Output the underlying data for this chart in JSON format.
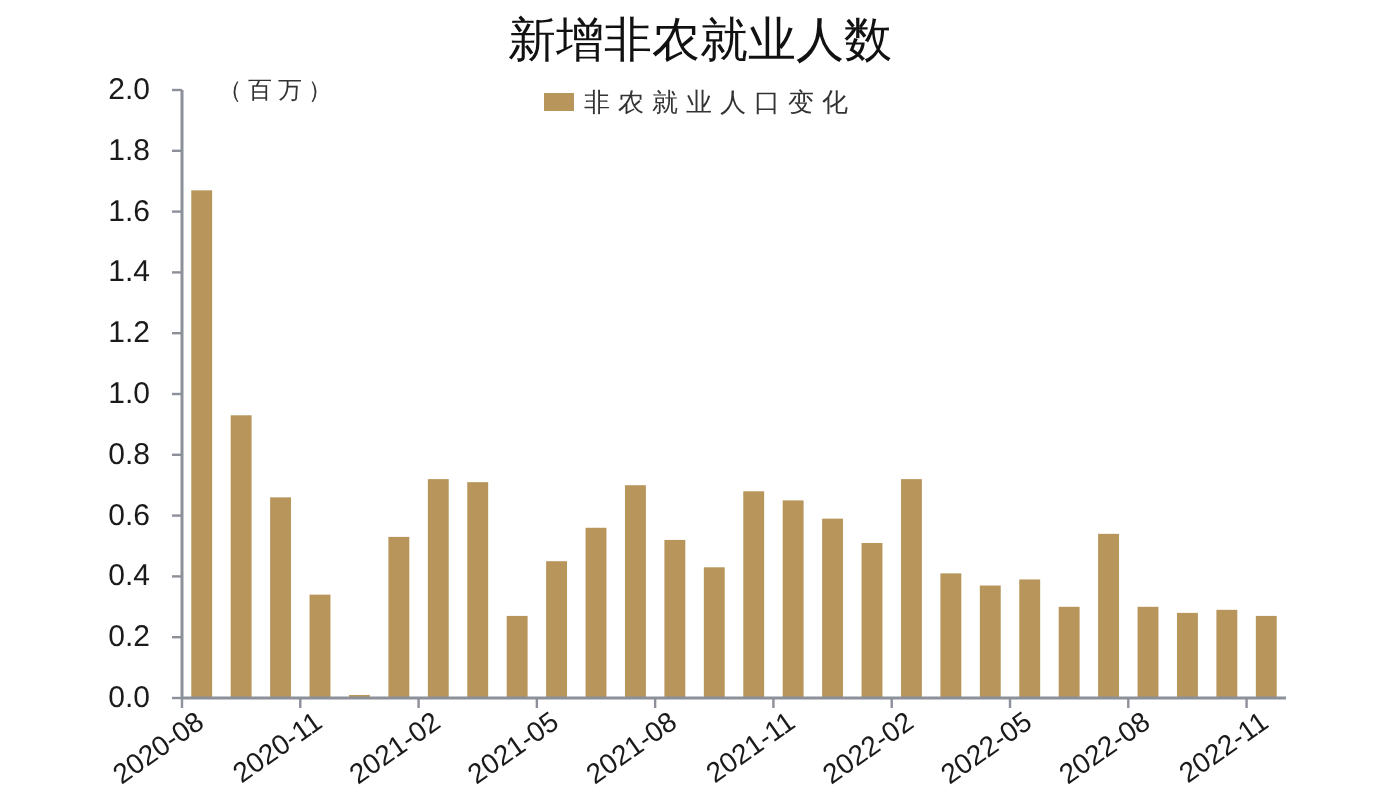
{
  "chart_data": {
    "type": "bar",
    "title": "新增非农就业人数",
    "ylabel": "（百万）",
    "categories": [
      "2020-08",
      null,
      null,
      "2020-11",
      null,
      null,
      "2021-02",
      null,
      null,
      "2021-05",
      null,
      null,
      "2021-08",
      null,
      null,
      "2021-11",
      null,
      null,
      "2022-02",
      null,
      null,
      "2022-05",
      null,
      null,
      "2022-08",
      null,
      null,
      "2022-11"
    ],
    "series": [
      {
        "name": "非农就业人口变化",
        "color": "#b8955a",
        "values": [
          1.67,
          0.93,
          0.66,
          0.34,
          0.01,
          0.53,
          0.72,
          0.71,
          0.27,
          0.45,
          0.56,
          0.7,
          0.52,
          0.43,
          0.68,
          0.65,
          0.59,
          0.51,
          0.72,
          0.41,
          0.37,
          0.39,
          0.3,
          0.54,
          0.3,
          0.28,
          0.29,
          0.27
        ]
      }
    ],
    "ylim": [
      0,
      2
    ],
    "yticks": [
      {
        "value": 0,
        "label": "0.0"
      },
      0.2,
      0.4,
      0.6,
      0.8,
      {
        "value": 1,
        "label": "1.0"
      },
      1.2,
      1.4,
      1.6,
      1.8,
      {
        "value": 2,
        "label": "2.0"
      }
    ],
    "legend": "top"
  }
}
